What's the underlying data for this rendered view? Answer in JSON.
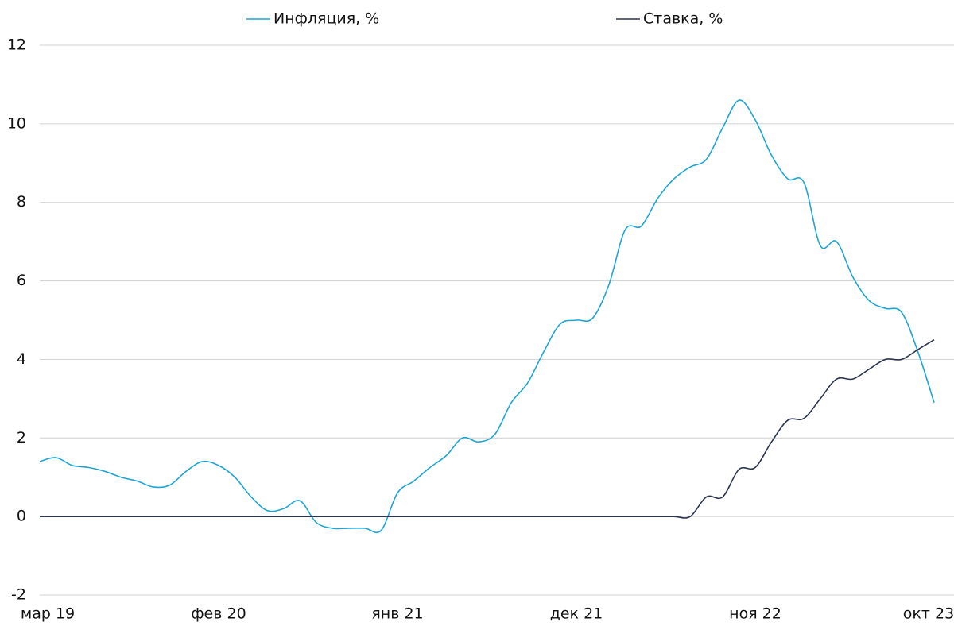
{
  "chart_data": {
    "type": "line",
    "categories": [
      "мар 19",
      null,
      null,
      null,
      null,
      null,
      null,
      null,
      null,
      null,
      null,
      "фев 20",
      null,
      null,
      null,
      null,
      null,
      null,
      null,
      null,
      null,
      null,
      "янв 21",
      null,
      null,
      null,
      null,
      null,
      null,
      null,
      null,
      null,
      null,
      "дек 21",
      null,
      null,
      null,
      null,
      null,
      null,
      null,
      null,
      null,
      null,
      "ноя 22",
      null,
      null,
      null,
      null,
      null,
      null,
      null,
      null,
      null,
      null,
      "окт 23"
    ],
    "series": [
      {
        "name": "Инфляция, %",
        "color": "#1ea5d4",
        "values": [
          1.4,
          1.5,
          1.3,
          1.25,
          1.15,
          1.0,
          0.9,
          0.75,
          0.8,
          1.15,
          1.4,
          1.3,
          1.0,
          0.5,
          0.15,
          0.2,
          0.4,
          -0.15,
          -0.3,
          -0.3,
          -0.3,
          -0.35,
          0.6,
          0.9,
          1.25,
          1.55,
          2.0,
          1.9,
          2.1,
          2.9,
          3.4,
          4.2,
          4.9,
          5.0,
          5.05,
          5.9,
          7.3,
          7.4,
          8.1,
          8.6,
          8.9,
          9.1,
          9.9,
          10.6,
          10.1,
          9.2,
          8.6,
          8.5,
          6.9,
          7.0,
          6.1,
          5.5,
          5.3,
          5.2,
          4.2,
          2.9
        ]
      },
      {
        "name": "Ставка, %",
        "color": "#2b3552",
        "values": [
          0,
          0,
          0,
          0,
          0,
          0,
          0,
          0,
          0,
          0,
          0,
          0,
          0,
          0,
          0,
          0,
          0,
          0,
          0,
          0,
          0,
          0,
          0,
          0,
          0,
          0,
          0,
          0,
          0,
          0,
          0,
          0,
          0,
          0,
          0,
          0,
          0,
          0,
          0,
          0,
          0,
          0.5,
          0.5,
          1.2,
          1.25,
          1.9,
          2.45,
          2.5,
          3.0,
          3.5,
          3.5,
          3.75,
          4.0,
          4.0,
          4.25,
          4.5
        ]
      }
    ],
    "ylim": [
      -2,
      12
    ],
    "yticks": [
      -2,
      0,
      2,
      4,
      6,
      8,
      10,
      12
    ],
    "grid": true,
    "legend": "top"
  }
}
